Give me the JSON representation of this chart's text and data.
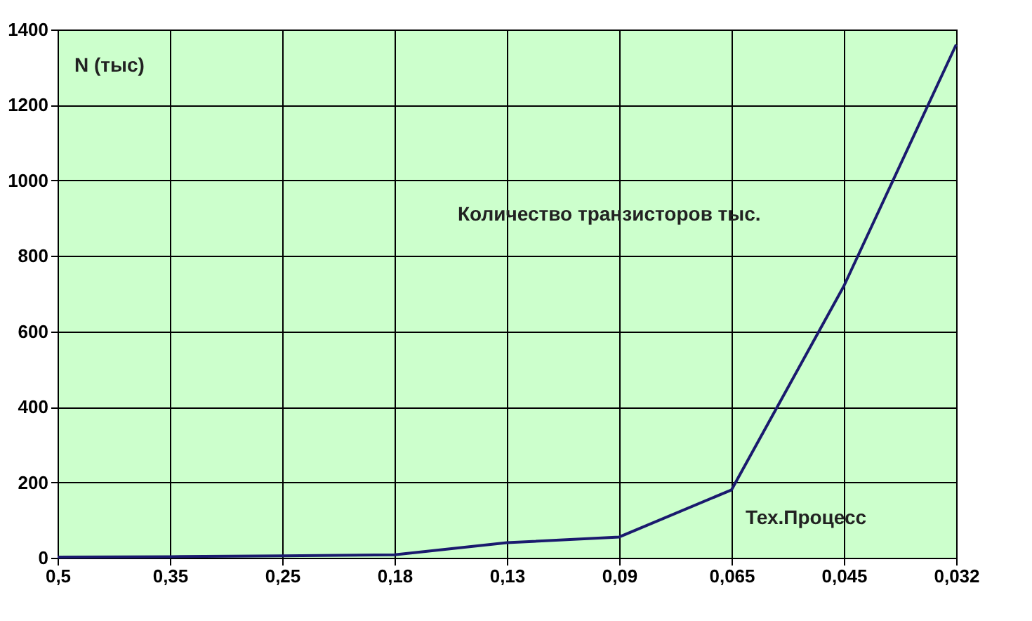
{
  "chart_data": {
    "type": "line",
    "title": "Количество транзисторов тыс.",
    "ylabel": "N (тыс)",
    "xlabel": "Тех.Процесс",
    "categories": [
      "0,5",
      "0,35",
      "0,25",
      "0,18",
      "0,13",
      "0,09",
      "0,065",
      "0,045",
      "0,032"
    ],
    "series": [
      {
        "color": "#1a1a6e",
        "values": [
          2,
          3,
          5,
          8,
          40,
          55,
          180,
          720,
          1360
        ]
      }
    ],
    "ylim": [
      0,
      1400
    ],
    "yticks": [
      0,
      200,
      400,
      600,
      800,
      1000,
      1200,
      1400
    ],
    "grid": true,
    "marker": "none",
    "line_style": "solid"
  }
}
